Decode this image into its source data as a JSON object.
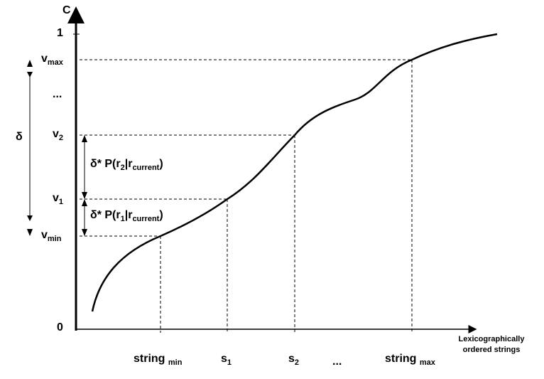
{
  "y_axis": {
    "label": "C",
    "ticks": {
      "one": "1",
      "zero": "0",
      "ellipsis": "..."
    },
    "v_max": {
      "base": "v",
      "sub": "max"
    },
    "v2": {
      "base": "v",
      "sub": "2"
    },
    "v1": {
      "base": "v",
      "sub": "1"
    },
    "v_min": {
      "base": "v",
      "sub": "min"
    }
  },
  "delta": "δ",
  "interval2": {
    "prefix": "δ* P(r",
    "sub1": "2",
    "mid": "|r",
    "sub2": "current",
    "suffix": ")"
  },
  "interval1": {
    "prefix": "δ* P(r",
    "sub1": "1",
    "mid": "|r",
    "sub2": "current",
    "suffix": ")"
  },
  "x_axis": {
    "label_line1": "Lexicographically",
    "label_line2": "ordered strings",
    "string_min": {
      "base": "string",
      "sub": "min"
    },
    "s1": {
      "base": "s",
      "sub": "1"
    },
    "s2": {
      "base": "s",
      "sub": "2"
    },
    "ellipsis": "...",
    "string_max": {
      "base": "string",
      "sub": "max"
    }
  }
}
